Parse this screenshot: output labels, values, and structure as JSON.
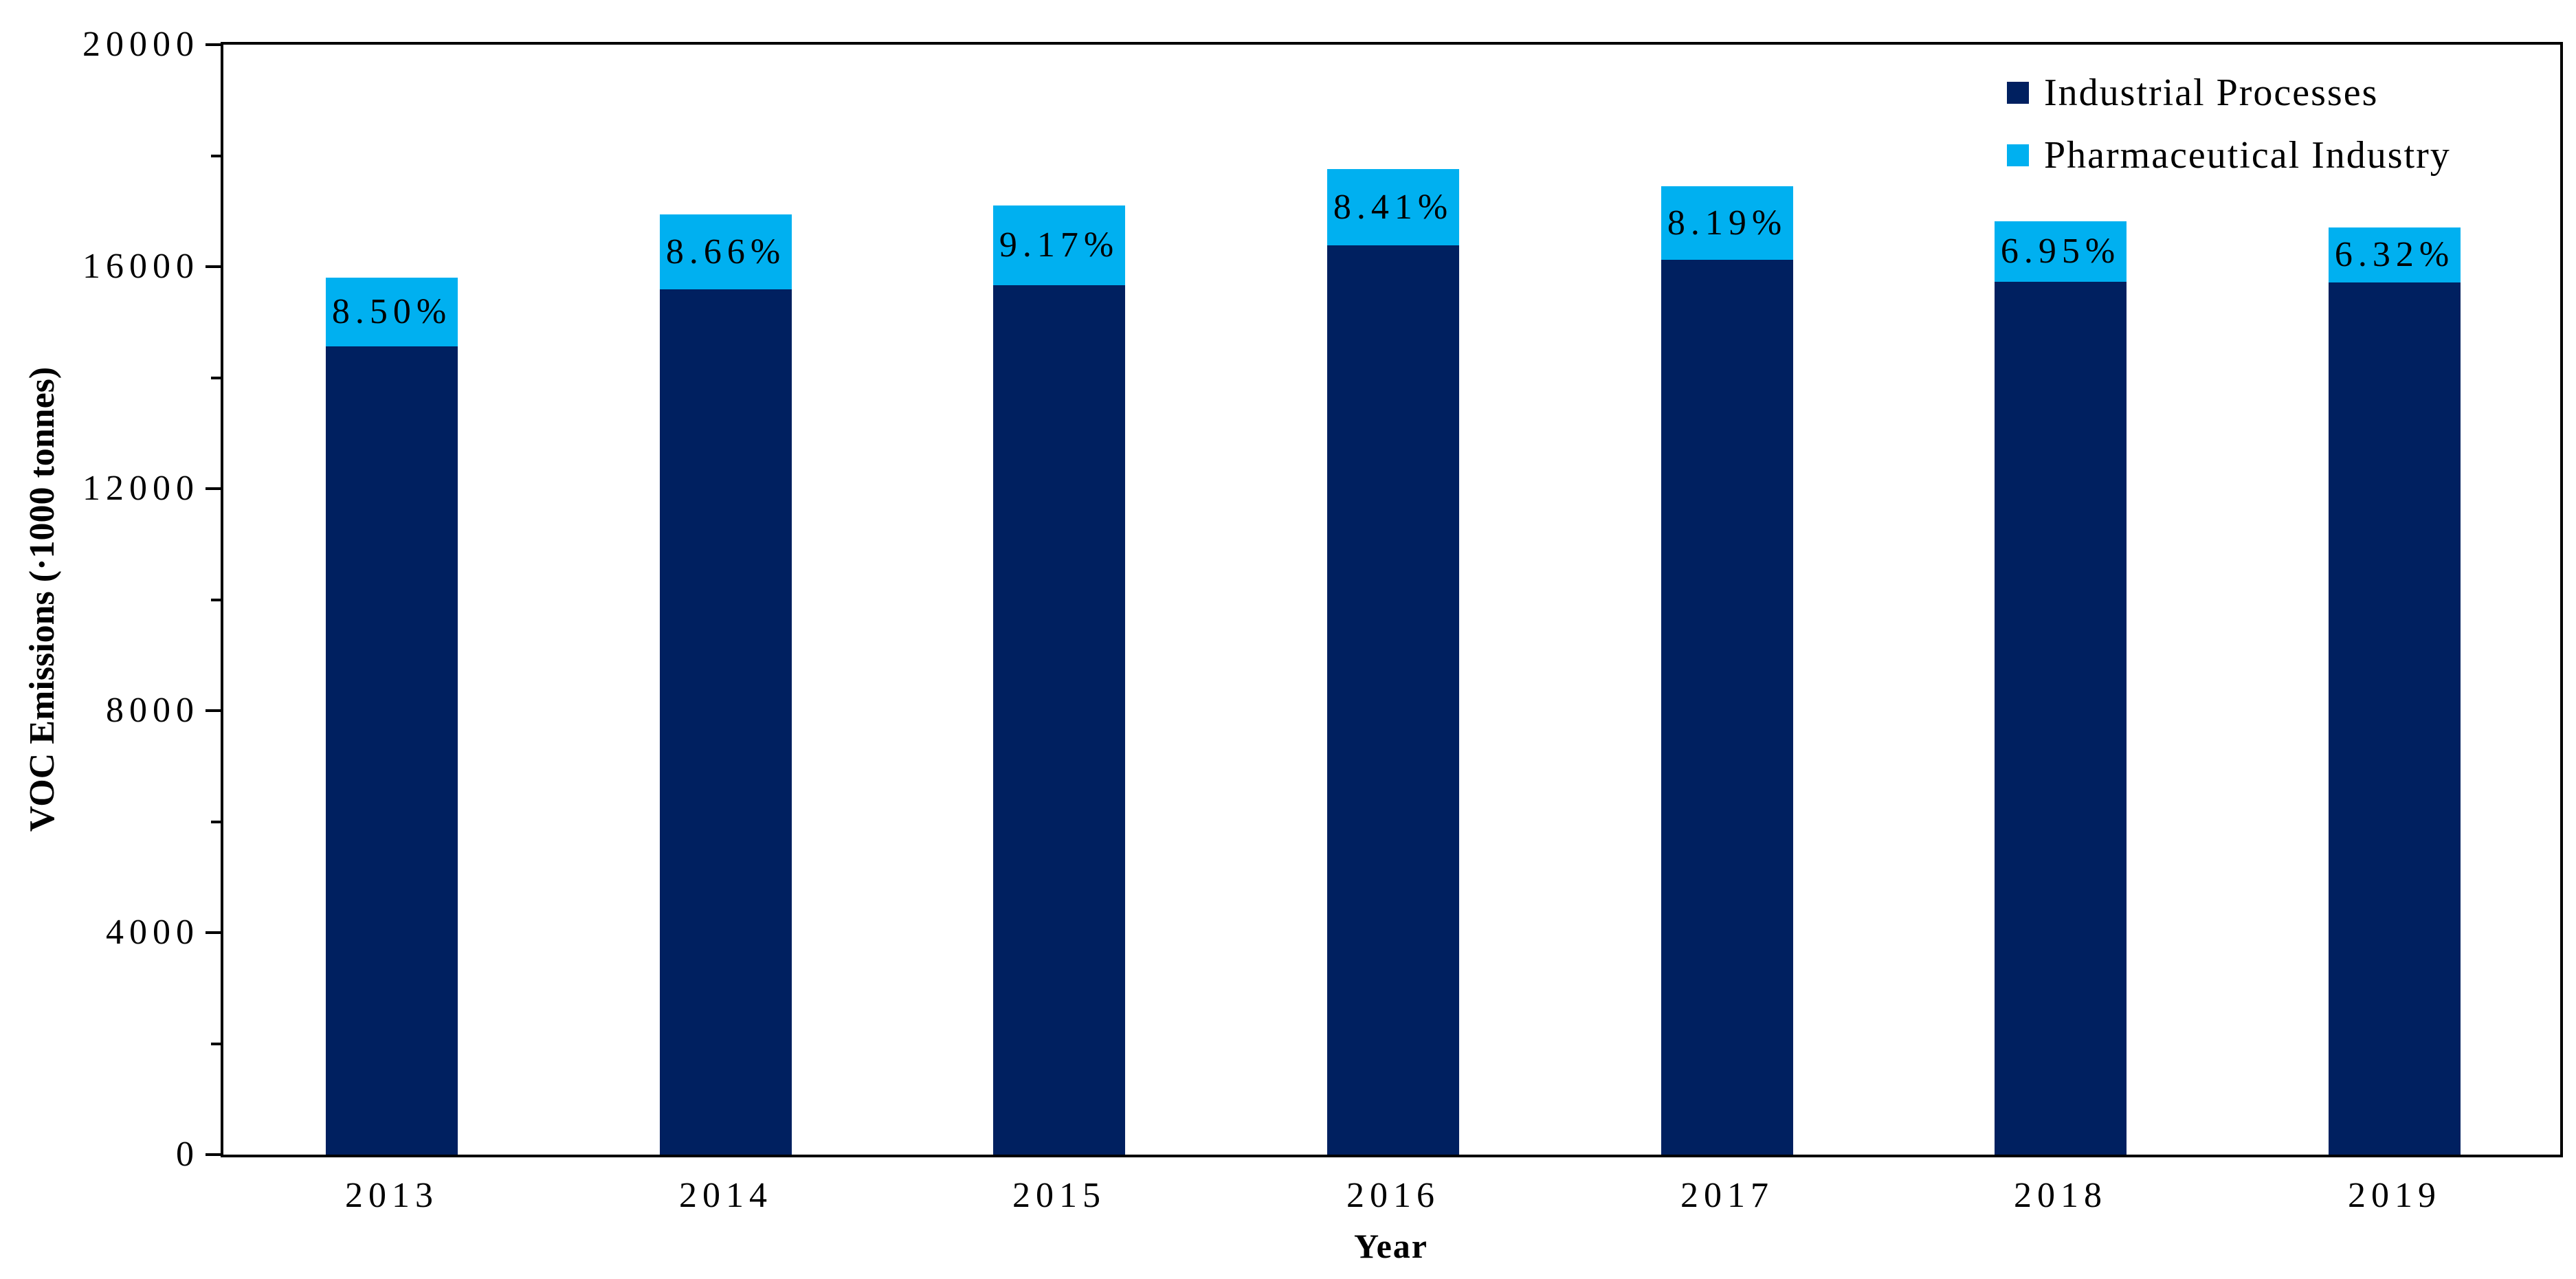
{
  "chart_data": {
    "type": "stacked_bar",
    "title": "",
    "xlabel": "Year",
    "ylabel": "VOC Emissions (·1000 tonnes)",
    "ylim": [
      0,
      20000
    ],
    "yticks_major": [
      0,
      4000,
      8000,
      12000,
      16000,
      20000
    ],
    "yticks_minor": [
      2000,
      6000,
      10000,
      14000,
      18000
    ],
    "grid": false,
    "legend_position": "top-right-inside",
    "categories": [
      "2013",
      "2014",
      "2015",
      "2016",
      "2017",
      "2018",
      "2019"
    ],
    "series": [
      {
        "name": "Industrial Processes",
        "color": "#002060",
        "values": [
          14560,
          15590,
          15660,
          16380,
          16120,
          15730,
          15710
        ]
      },
      {
        "name": "Pharmaceutical Industry",
        "color": "#00B0F0",
        "values": [
          1240,
          1350,
          1440,
          1380,
          1320,
          1090,
          990
        ]
      }
    ],
    "bar_labels": [
      "8.50%",
      "8.66%",
      "9.17%",
      "8.41%",
      "8.19%",
      "6.95%",
      "6.32%"
    ]
  },
  "colors": {
    "axis": "#000000",
    "background": "#ffffff",
    "industrial": "#002060",
    "pharmaceutical": "#00B0F0"
  }
}
